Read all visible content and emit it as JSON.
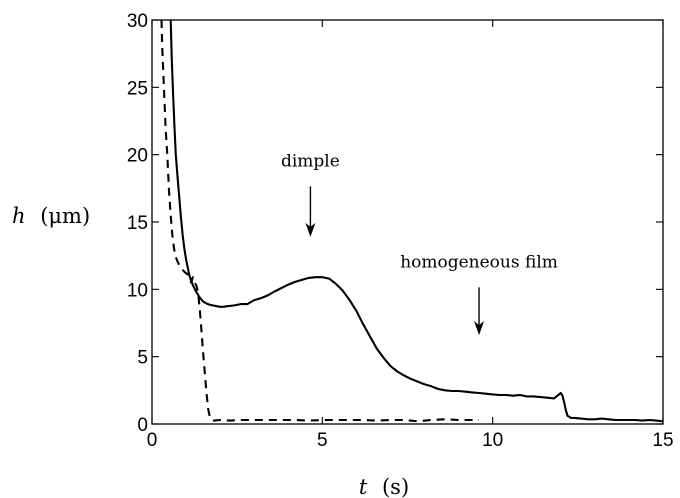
{
  "chart_data": {
    "type": "line",
    "title": "",
    "xlabel": "t (s)",
    "xlabel_var": "t",
    "xlabel_unit": "(s)",
    "ylabel": "h (μm)",
    "ylabel_var": "h",
    "ylabel_unit": "(μm)",
    "xlim": [
      0,
      15
    ],
    "ylim": [
      0,
      30
    ],
    "xticks": [
      0,
      5,
      10,
      15
    ],
    "yticks": [
      0,
      5,
      10,
      15,
      20,
      25,
      30
    ],
    "grid": false,
    "legend": "none",
    "annotations": [
      {
        "text": "dimple",
        "x": 4.65,
        "y": 17.5,
        "arrow_to": [
          4.65,
          13.9
        ]
      },
      {
        "text": "homogeneous film",
        "x": 9.6,
        "y": 10.0,
        "arrow_to": [
          9.6,
          6.6
        ]
      }
    ],
    "series": [
      {
        "style": "solid",
        "x": [
          0.55,
          0.58,
          0.62,
          0.66,
          0.7,
          0.75,
          0.8,
          0.85,
          0.9,
          0.95,
          1.0,
          1.05,
          1.1,
          1.2,
          1.3,
          1.4,
          1.5,
          1.6,
          1.7,
          1.8,
          1.9,
          2.0,
          2.1,
          2.2,
          2.4,
          2.6,
          2.8,
          3.0,
          3.2,
          3.4,
          3.6,
          3.8,
          4.0,
          4.2,
          4.4,
          4.6,
          4.8,
          5.0,
          5.2,
          5.4,
          5.6,
          5.8,
          6.0,
          6.2,
          6.4,
          6.6,
          6.8,
          7.0,
          7.2,
          7.4,
          7.6,
          7.8,
          8.0,
          8.2,
          8.4,
          8.6,
          8.8,
          9.0,
          9.2,
          9.4,
          9.6,
          9.8,
          10.0,
          10.2,
          10.4,
          10.6,
          10.8,
          11.0,
          11.2,
          11.4,
          11.6,
          11.8,
          12.0,
          12.05,
          12.1,
          12.15,
          12.2,
          12.3,
          12.4,
          12.6,
          12.8,
          13.0,
          13.2,
          13.4,
          13.6,
          13.8,
          14.0,
          14.2,
          14.4,
          14.6,
          14.8,
          15.0
        ],
        "y": [
          30,
          27,
          24.5,
          22,
          20,
          18.3,
          16.8,
          15.3,
          14,
          13,
          12.2,
          11.6,
          11.0,
          10.3,
          9.8,
          9.4,
          9.1,
          8.95,
          8.85,
          8.8,
          8.75,
          8.7,
          8.7,
          8.75,
          8.8,
          8.9,
          8.9,
          9.2,
          9.35,
          9.55,
          9.85,
          10.1,
          10.35,
          10.55,
          10.7,
          10.85,
          10.9,
          10.9,
          10.8,
          10.4,
          9.9,
          9.2,
          8.4,
          7.4,
          6.5,
          5.6,
          4.9,
          4.3,
          3.9,
          3.6,
          3.35,
          3.15,
          2.95,
          2.8,
          2.6,
          2.5,
          2.45,
          2.45,
          2.4,
          2.35,
          2.3,
          2.25,
          2.2,
          2.15,
          2.15,
          2.1,
          2.15,
          2.05,
          2.05,
          2.0,
          1.95,
          1.9,
          2.3,
          2.1,
          1.6,
          1.0,
          0.6,
          0.45,
          0.45,
          0.4,
          0.35,
          0.35,
          0.4,
          0.35,
          0.3,
          0.3,
          0.3,
          0.3,
          0.25,
          0.3,
          0.25,
          0.2
        ]
      },
      {
        "style": "dashed",
        "x": [
          0.28,
          0.3,
          0.35,
          0.4,
          0.45,
          0.5,
          0.55,
          0.6,
          0.65,
          0.7,
          0.75,
          0.8,
          0.85,
          0.9,
          0.95,
          1.0,
          1.05,
          1.1,
          1.15,
          1.2,
          1.25,
          1.3,
          1.35,
          1.4,
          1.45,
          1.5,
          1.55,
          1.6,
          1.65,
          1.7,
          1.75,
          1.8,
          2.0,
          2.3,
          2.6,
          3.0,
          3.4,
          3.8,
          4.2,
          4.6,
          5.0,
          5.4,
          5.8,
          6.2,
          6.6,
          7.0,
          7.4,
          7.8,
          8.2,
          8.6,
          9.0,
          9.3,
          9.6
        ],
        "y": [
          30,
          28,
          25,
          22,
          20,
          17.3,
          15.5,
          14,
          13,
          12.4,
          12.05,
          11.8,
          11.6,
          11.45,
          11.3,
          11.2,
          11.1,
          10.9,
          10.5,
          10.9,
          10.5,
          10.3,
          9.8,
          8.6,
          7.0,
          5.3,
          3.8,
          2.3,
          1.1,
          0.5,
          0.3,
          0.25,
          0.3,
          0.25,
          0.3,
          0.3,
          0.3,
          0.3,
          0.3,
          0.25,
          0.3,
          0.3,
          0.3,
          0.3,
          0.25,
          0.3,
          0.3,
          0.2,
          0.3,
          0.35,
          0.3,
          0.3,
          0.3
        ]
      }
    ]
  }
}
